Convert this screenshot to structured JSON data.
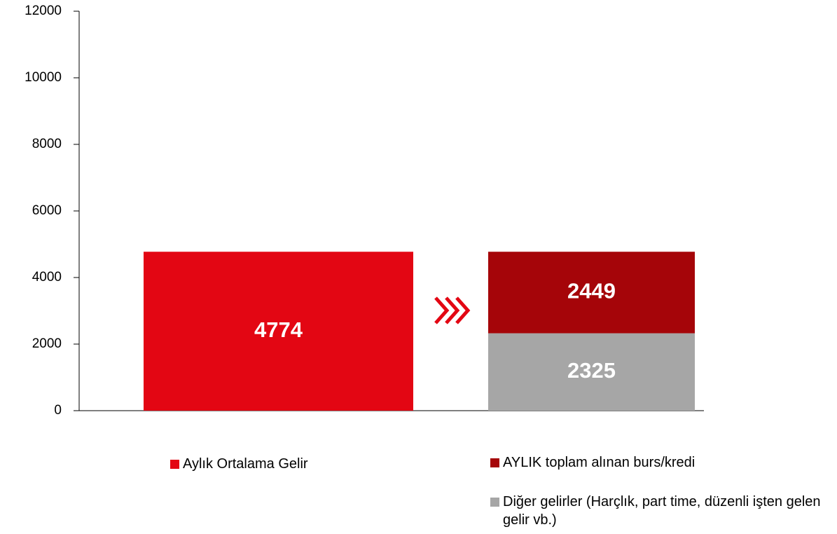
{
  "chart_data": {
    "type": "stacked_bar",
    "series": [
      {
        "name": "Aylık Ortalama Gelir",
        "color": "#e30613",
        "values": [
          4774,
          null
        ]
      },
      {
        "name": "AYLIK toplam alınan burs/kredi",
        "color": "#a50509",
        "values": [
          null,
          2449
        ]
      },
      {
        "name": "Diğer gelirler (Harçlık, part time, düzenli işten gelen gelir vb.)",
        "color": "#a6a6a6",
        "values": [
          null,
          2325
        ]
      }
    ],
    "ylim": [
      0,
      12000
    ],
    "yticks": [
      0,
      2000,
      4000,
      6000,
      8000,
      10000,
      12000
    ]
  }
}
